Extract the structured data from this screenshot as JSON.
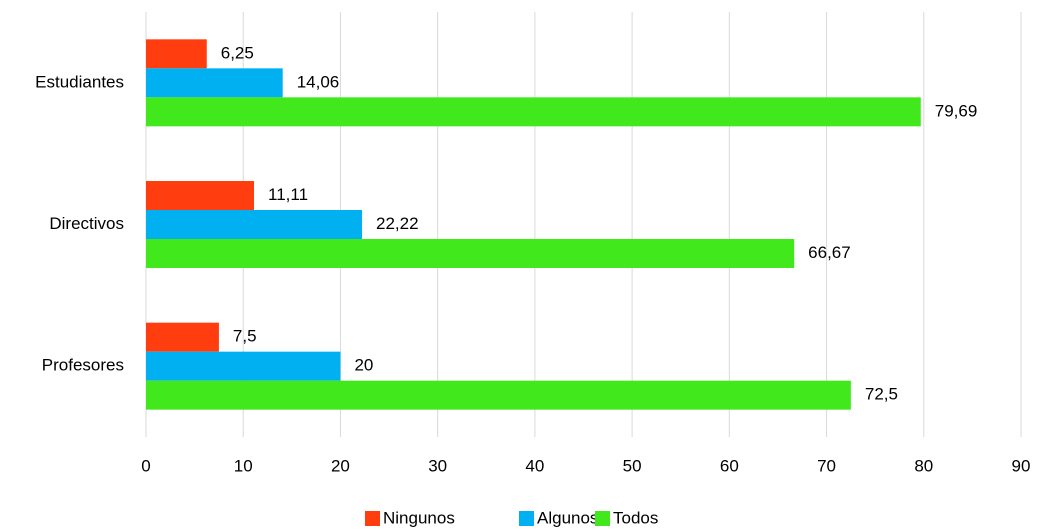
{
  "chart_data": {
    "type": "hbar",
    "categories": [
      "Estudiantes",
      "Directivos",
      "Profesores"
    ],
    "series": [
      {
        "name": "Ningunos",
        "color": "#ff3d0f",
        "values": [
          6.25,
          11.11,
          7.5
        ],
        "value_labels": [
          "6,25",
          "11,11",
          "7,5"
        ]
      },
      {
        "name": "Algunos",
        "color": "#00b0f0",
        "values": [
          14.06,
          22.22,
          20
        ],
        "value_labels": [
          "14,06",
          "22,22",
          "20"
        ]
      },
      {
        "name": "Todos",
        "color": "#40e81c",
        "values": [
          79.69,
          66.67,
          72.5
        ],
        "value_labels": [
          "79,69",
          "66,67",
          "72,5"
        ]
      }
    ],
    "xlim": [
      0,
      90
    ],
    "xticks": [
      0,
      10,
      20,
      30,
      40,
      50,
      60,
      70,
      80,
      90
    ],
    "grid": true,
    "legend": "bottom"
  }
}
